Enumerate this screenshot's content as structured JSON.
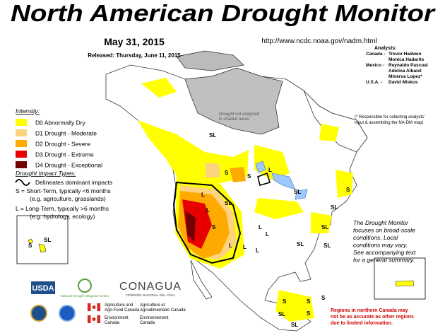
{
  "header": {
    "title": "North American Drought Monitor",
    "date": "May 31, 2015",
    "released": "Released: Thursday, June 11, 2015",
    "url": "http://www.ncdc.noaa.gov/nadm.html"
  },
  "analysts": {
    "heading": "Analysts:",
    "groups": [
      {
        "country": "Canada -",
        "names": [
          "Trevor Hadwen",
          "Monica Hadarits"
        ]
      },
      {
        "country": "Mexico -",
        "names": [
          "Reynaldo Pascual",
          "Adelina Albanil",
          "Minerva Lopez*"
        ]
      },
      {
        "country": "U.S.A. -",
        "names": [
          "David Miskus"
        ]
      }
    ],
    "note": [
      "(* Responsible for collecting analysts'",
      "input & assembling the NA-DM map)"
    ]
  },
  "legend": {
    "heading": "Intensity:",
    "items": [
      {
        "label": "D0 Abnormally Dry",
        "color": "#ffff00"
      },
      {
        "label": "D1 Drought - Moderate",
        "color": "#fcd37f"
      },
      {
        "label": "D2 Drought - Severe",
        "color": "#ffaa00"
      },
      {
        "label": "D3 Drought - Extreme",
        "color": "#e60000"
      },
      {
        "label": "D4 Drought - Exceptional",
        "color": "#730000"
      }
    ]
  },
  "impacts": {
    "heading": "Drought Impact Types:",
    "lines": [
      "Delineates dominant impacts",
      "S = Short-Term, typically <6 months",
      "(e.g. agriculture, grasslands)",
      "L = Long-Term, typically >6 months",
      "(e.g. hydrology, ecology)"
    ]
  },
  "map": {
    "shaded_note": [
      "Drought not analyzed",
      "in shaded areas"
    ],
    "labels": [
      "SL",
      "S",
      "S",
      "L",
      "SL",
      "L",
      "L",
      "SL",
      "S",
      "SL",
      "SL",
      "L",
      "L",
      "L",
      "L",
      "L",
      "SL",
      "SL",
      "S",
      "S",
      "S",
      "S",
      "S",
      "SL",
      "SL",
      "S",
      "SL"
    ]
  },
  "side_note": [
    "The Drought Monitor",
    "focuses on broad-scale",
    "conditions.  Local",
    "conditions may vary.",
    "See accompanying text",
    "for a general summary."
  ],
  "warning": [
    "Regions in northern Canada may",
    "not be as accurate as other regions",
    "due to limited information."
  ],
  "logos": {
    "usda": "USDA",
    "ndmc": "National Drought Mitigation Center",
    "conagua": "CONAGUA",
    "conagua_sub": "COMISIÓN NACIONAL DEL AGUA",
    "aafc_en": [
      "Agriculture and",
      "Agri-Food Canada"
    ],
    "aafc_fr": [
      "Agriculture et",
      "Agroalimentaire Canada"
    ],
    "ec_en": [
      "Environment",
      "Canada"
    ],
    "ec_fr": [
      "Environnement",
      "Canada"
    ]
  }
}
